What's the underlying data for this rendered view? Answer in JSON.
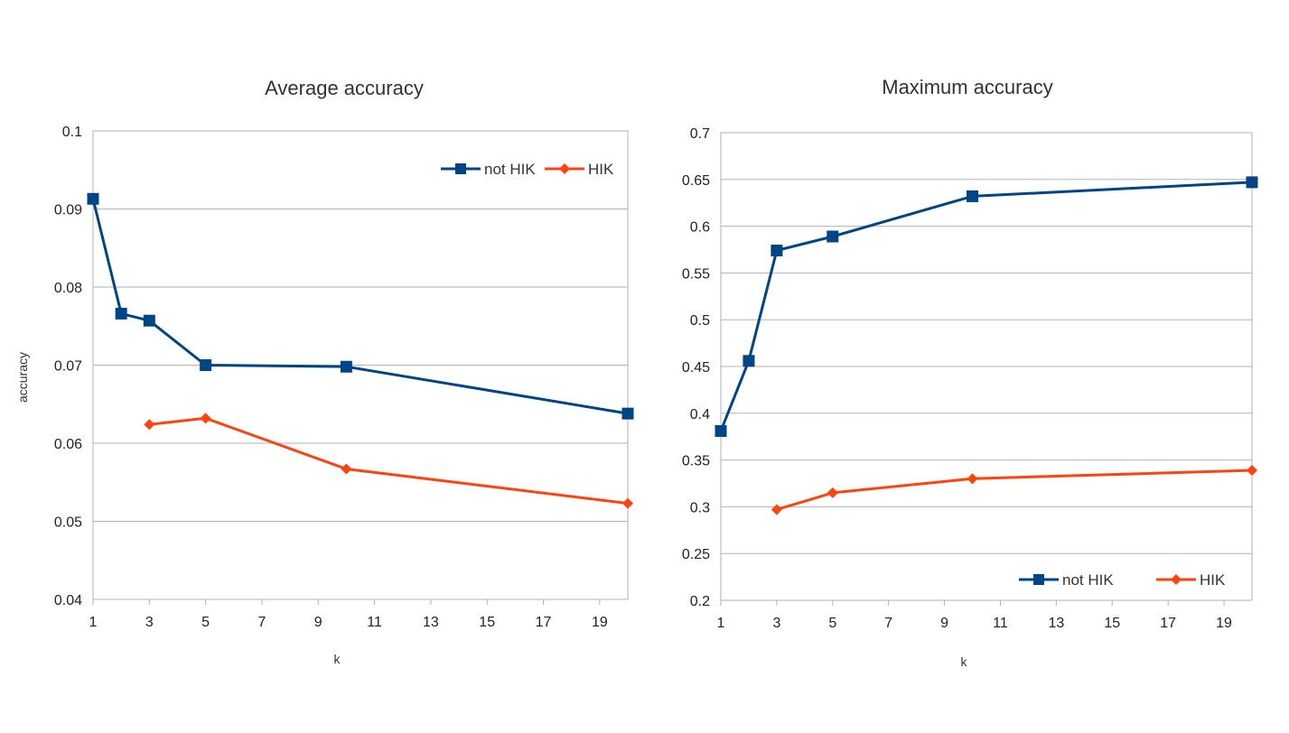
{
  "chart_data": [
    {
      "type": "line",
      "title": "Average accuracy",
      "xlabel": "k",
      "ylabel": "accuracy",
      "xlim": [
        1,
        20
      ],
      "ylim": [
        0.04,
        0.1
      ],
      "x_ticks": [
        "1",
        "3",
        "5",
        "7",
        "9",
        "11",
        "13",
        "15",
        "17",
        "19"
      ],
      "y_ticks": [
        "0.04",
        "0.05",
        "0.06",
        "0.07",
        "0.08",
        "0.09",
        "0.1"
      ],
      "grid": true,
      "legend_position": "top-right",
      "series": [
        {
          "name": "not HIK",
          "color": "#004586",
          "marker": "square",
          "points": [
            [
              1,
              0.0913
            ],
            [
              2,
              0.0766
            ],
            [
              3,
              0.0757
            ],
            [
              5,
              0.07
            ],
            [
              10,
              0.0698
            ],
            [
              20,
              0.0638
            ]
          ]
        },
        {
          "name": "HIK",
          "color": "#ff420e",
          "marker": "diamond",
          "points": [
            [
              3,
              0.0624
            ],
            [
              5,
              0.0632
            ],
            [
              10,
              0.0567
            ],
            [
              20,
              0.0523
            ]
          ]
        }
      ]
    },
    {
      "type": "line",
      "title": "Maximum accuracy",
      "xlabel": "k",
      "ylabel": "",
      "xlim": [
        1,
        20
      ],
      "ylim": [
        0.2,
        0.7
      ],
      "x_ticks": [
        "1",
        "3",
        "5",
        "7",
        "9",
        "11",
        "13",
        "15",
        "17",
        "19"
      ],
      "y_ticks": [
        "0.2",
        "0.25",
        "0.3",
        "0.35",
        "0.4",
        "0.45",
        "0.5",
        "0.55",
        "0.6",
        "0.65",
        "0.7"
      ],
      "grid": true,
      "legend_position": "bottom-right",
      "series": [
        {
          "name": "not HIK",
          "color": "#004586",
          "marker": "square",
          "points": [
            [
              1,
              0.381
            ],
            [
              2,
              0.456
            ],
            [
              3,
              0.574
            ],
            [
              5,
              0.589
            ],
            [
              10,
              0.632
            ],
            [
              20,
              0.647
            ]
          ]
        },
        {
          "name": "HIK",
          "color": "#ff420e",
          "marker": "diamond",
          "points": [
            [
              3,
              0.297
            ],
            [
              5,
              0.315
            ],
            [
              10,
              0.33
            ],
            [
              20,
              0.339
            ]
          ]
        }
      ]
    }
  ]
}
